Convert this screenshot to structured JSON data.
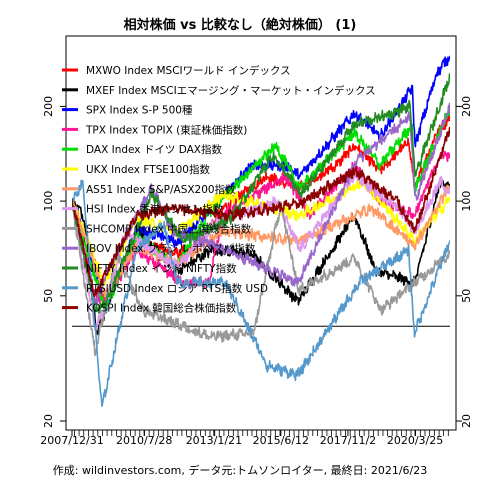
{
  "chart_data": {
    "type": "line",
    "title": "相対株価 vs 比較なし（絶対株価） (1)",
    "footer": "作成: wildinvestors.com, データ元:トムソンロイター, 最終日: 2021/6/23",
    "yscale": "log",
    "ylim": [
      19,
      330
    ],
    "y_ticks": [
      20,
      50,
      100,
      200
    ],
    "y_ticks_right": [
      20,
      50,
      100,
      200
    ],
    "x_start": "2007-12-31",
    "x_end": "2021-06-23",
    "x_tick_labels": [
      "2007/12/31",
      "2010/7/28",
      "2013/1/21",
      "2015/6/12",
      "2017/11/2",
      "2020/3/25"
    ],
    "x_tick_dates": [
      "2007-12-31",
      "2010-07-28",
      "2013-01-21",
      "2015-06-12",
      "2017-11-02",
      "2020-03-25"
    ],
    "reference_line": 40,
    "legend_position": "top-left",
    "series": [
      {
        "name": "MXWO Index MSCIワールド インデックス",
        "color": "#ff0000",
        "dates": [
          "2007-12-31",
          "2008-10-15",
          "2009-03-09",
          "2010-04-15",
          "2011-10-01",
          "2012-06-01",
          "2013-06-01",
          "2014-12-01",
          "2016-02-01",
          "2017-06-01",
          "2018-01-26",
          "2018-12-24",
          "2019-12-31",
          "2020-03-23",
          "2020-12-31",
          "2021-06-23"
        ],
        "values": [
          100,
          65,
          48,
          75,
          68,
          72,
          95,
          120,
          110,
          130,
          150,
          125,
          155,
          110,
          165,
          185
        ]
      },
      {
        "name": "MXEF Index MSCIエマージング・マーケット・インデックス",
        "color": "#000000",
        "dates": [
          "2007-12-31",
          "2008-06-01",
          "2008-11-20",
          "2009-03-09",
          "2010-04-15",
          "2011-09-30",
          "2012-12-31",
          "2014-06-01",
          "2016-01-21",
          "2018-01-26",
          "2018-10-29",
          "2020-03-23",
          "2021-02-17",
          "2021-06-23"
        ],
        "values": [
          100,
          90,
          38,
          45,
          80,
          60,
          70,
          68,
          48,
          90,
          60,
          55,
          115,
          110
        ]
      },
      {
        "name": "SPX Index S-P 500種",
        "color": "#0000ff",
        "dates": [
          "2007-12-31",
          "2008-11-20",
          "2009-03-09",
          "2010-04-23",
          "2011-10-03",
          "2012-12-31",
          "2014-06-01",
          "2015-08-24",
          "2016-02-11",
          "2018-01-26",
          "2018-12-24",
          "2020-02-19",
          "2020-03-23",
          "2020-12-31",
          "2021-06-23"
        ],
        "values": [
          100,
          58,
          45,
          82,
          74,
          96,
          130,
          130,
          120,
          190,
          160,
          230,
          150,
          255,
          290
        ]
      },
      {
        "name": "TPX Index TOPIX (東証株価指数)",
        "color": "#ff1493",
        "dates": [
          "2007-12-31",
          "2008-10-28",
          "2009-03-10",
          "2010-04-15",
          "2011-11-25",
          "2012-11-14",
          "2013-05-22",
          "2015-08-10",
          "2016-06-24",
          "2018-01-23",
          "2018-12-25",
          "2020-03-16",
          "2021-02-16",
          "2021-06-23"
        ],
        "values": [
          100,
          50,
          48,
          70,
          55,
          55,
          90,
          120,
          90,
          130,
          100,
          90,
          140,
          140
        ]
      },
      {
        "name": "DAX Index ドイツ DAX指数",
        "color": "#00dd00",
        "dates": [
          "2007-12-31",
          "2008-11-21",
          "2009-03-06",
          "2010-04-15",
          "2011-09-12",
          "2012-12-31",
          "2015-04-10",
          "2016-02-11",
          "2018-01-23",
          "2018-12-27",
          "2020-02-17",
          "2020-03-18",
          "2021-06-23"
        ],
        "values": [
          100,
          55,
          45,
          78,
          62,
          95,
          150,
          110,
          165,
          130,
          175,
          108,
          198
        ]
      },
      {
        "name": "UKX Index FTSE100指数",
        "color": "#ffff00",
        "dates": [
          "2007-12-31",
          "2009-03-03",
          "2010-04-15",
          "2011-10-01",
          "2013-05-22",
          "2016-02-11",
          "2018-05-22",
          "2020-03-23",
          "2021-06-23"
        ],
        "values": [
          100,
          55,
          88,
          80,
          105,
          90,
          115,
          75,
          102
        ]
      },
      {
        "name": "AS51 Index S&P/ASX200指数",
        "color": "#ff9966",
        "dates": [
          "2007-12-31",
          "2009-03-06",
          "2010-04-15",
          "2011-09-23",
          "2013-05-01",
          "2016-02-09",
          "2018-08-30",
          "2020-03-23",
          "2021-06-23"
        ],
        "values": [
          100,
          50,
          72,
          63,
          80,
          75,
          95,
          72,
          112
        ]
      },
      {
        "name": "HSI Index 香港ハンセン指数",
        "color": "#dd99ee",
        "dates": [
          "2007-12-31",
          "2008-10-27",
          "2009-03-09",
          "2009-11-17",
          "2011-10-04",
          "2013-01-28",
          "2015-04-27",
          "2016-02-12",
          "2018-01-26",
          "2019-09-03",
          "2020-03-19",
          "2021-02-17",
          "2021-06-23"
        ],
        "values": [
          100,
          40,
          45,
          80,
          62,
          85,
          100,
          70,
          120,
          95,
          80,
          115,
          105
        ]
      },
      {
        "name": "SHCOMP Index 中国上海総合指数",
        "color": "#999999",
        "dates": [
          "2007-12-31",
          "2008-10-28",
          "2009-08-04",
          "2010-07-05",
          "2012-12-03",
          "2014-06-20",
          "2015-06-12",
          "2016-01-28",
          "2018-01-29",
          "2019-01-04",
          "2021-06-23"
        ],
        "values": [
          100,
          33,
          68,
          45,
          37,
          38,
          98,
          52,
          66,
          45,
          68
        ]
      },
      {
        "name": "IBOV Index ブラジル ボベスパ指数",
        "color": "#9966cc",
        "dates": [
          "2007-12-31",
          "2008-10-27",
          "2009-03-02",
          "2010-11-04",
          "2011-08-08",
          "2013-07-03",
          "2016-01-26",
          "2018-02-26",
          "2020-01-23",
          "2020-03-23",
          "2021-06-23"
        ],
        "values": [
          100,
          47,
          58,
          110,
          80,
          70,
          55,
          135,
          185,
          100,
          200
        ]
      },
      {
        "name": "NIFTY Index インド NIFTY指数",
        "color": "#228b22",
        "dates": [
          "2007-12-31",
          "2008-10-27",
          "2009-03-09",
          "2010-11-05",
          "2011-12-20",
          "2013-08-28",
          "2015-03-03",
          "2016-02-29",
          "2018-01-29",
          "2019-06-03",
          "2020-01-20",
          "2020-03-24",
          "2021-06-23"
        ],
        "values": [
          100,
          45,
          47,
          105,
          75,
          88,
          140,
          105,
          175,
          190,
          200,
          120,
          250
        ]
      },
      {
        "name": "RTSIUSD Index ロシア RTS指数 USD",
        "color": "#5599cc",
        "dates": [
          "2007-12-31",
          "2008-05-19",
          "2009-01-23",
          "2010-04-15",
          "2011-04-08",
          "2011-10-04",
          "2013-06-24",
          "2014-12-16",
          "2016-01-20",
          "2018-03-28",
          "2019-12-31",
          "2020-03-18",
          "2021-06-23"
        ],
        "values": [
          100,
          115,
          22,
          70,
          85,
          55,
          55,
          30,
          28,
          55,
          70,
          38,
          75
        ]
      },
      {
        "name": "KOSPI Index 韓国総合株価指数",
        "color": "#8b0000",
        "dates": [
          "2007-12-31",
          "2008-10-24",
          "2009-03-03",
          "2010-04-15",
          "2011-08-19",
          "2013-06-25",
          "2016-02-12",
          "2018-01-29",
          "2019-08-06",
          "2020-03-19",
          "2021-06-23"
        ],
        "values": [
          100,
          50,
          58,
          90,
          95,
          90,
          98,
          125,
          100,
          80,
          170
        ]
      }
    ]
  }
}
